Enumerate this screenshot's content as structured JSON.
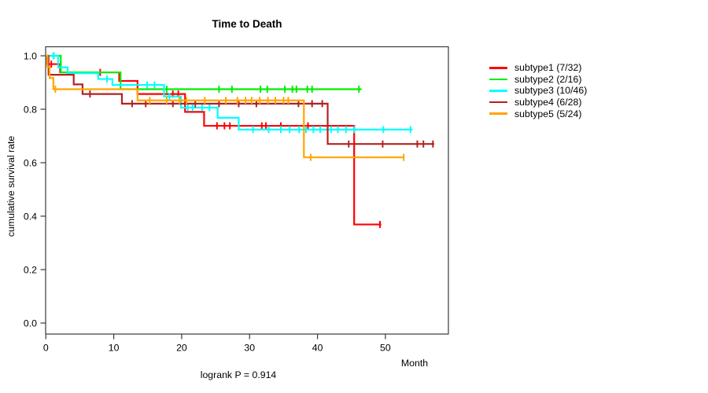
{
  "chart_data": {
    "type": "line",
    "variant": "kaplan-meier-step",
    "title": "Time to Death",
    "subtitle": "logrank P = 0.914",
    "xlabel": "Month",
    "ylabel": "cumulative survival rate",
    "x_ticks": [
      0,
      10,
      20,
      30,
      40,
      50
    ],
    "y_tick_labels": [
      "0.0",
      "0.2",
      "0.4",
      "0.6",
      "0.8",
      "1.0"
    ],
    "xlim": [
      0,
      59.3
    ],
    "ylim": [
      -0.04,
      1.03
    ],
    "grid": false,
    "legend_position": "right",
    "series": [
      {
        "name": "subtype1",
        "label": "subtype1 (7/32)",
        "events": 7,
        "n": 32,
        "color": "#FF0000",
        "points": [
          [
            0,
            1.0
          ],
          [
            0.2,
            0.969
          ],
          [
            2.1,
            0.938
          ],
          [
            10.8,
            0.906
          ],
          [
            13.5,
            0.857
          ],
          [
            20.5,
            0.79
          ],
          [
            23.3,
            0.738
          ],
          [
            45.4,
            0.369
          ]
        ],
        "end": 49.4,
        "censors": [
          0.8,
          8.0,
          18.7,
          19.5,
          25.2,
          26.3,
          27.1,
          31.8,
          32.4,
          34.6,
          38.6,
          49.2
        ]
      },
      {
        "name": "subtype2",
        "label": "subtype2 (2/16)",
        "events": 2,
        "n": 16,
        "color": "#00EE00",
        "points": [
          [
            0,
            1.0
          ],
          [
            2.2,
            0.938
          ],
          [
            11.0,
            0.875
          ]
        ],
        "end": 46.5,
        "censors": [
          1.15,
          17.8,
          25.5,
          27.4,
          31.6,
          32.6,
          35.2,
          36.3,
          36.9,
          38.5,
          39.2,
          46.1
        ]
      },
      {
        "name": "subtype3",
        "label": "subtype3 (10/46)",
        "events": 10,
        "n": 46,
        "color": "#00FFFF",
        "points": [
          [
            0,
            1.0
          ],
          [
            1.8,
            0.957
          ],
          [
            3.2,
            0.935
          ],
          [
            7.7,
            0.913
          ],
          [
            9.8,
            0.891
          ],
          [
            17.4,
            0.848
          ],
          [
            19.9,
            0.806
          ],
          [
            25.3,
            0.768
          ],
          [
            28.4,
            0.724
          ]
        ],
        "end": 54.0,
        "censors": [
          1.1,
          9.0,
          14.9,
          16.0,
          18.2,
          20.9,
          21.6,
          23.0,
          24.1,
          30.5,
          32.8,
          34.6,
          35.9,
          37.3,
          38.3,
          39.4,
          40.4,
          42.0,
          43.0,
          44.2,
          45.4,
          49.7,
          53.7
        ]
      },
      {
        "name": "subtype4",
        "label": "subtype4 (6/28)",
        "events": 6,
        "n": 28,
        "color": "#B22222",
        "points": [
          [
            0,
            1.0
          ],
          [
            0.4,
            0.929
          ],
          [
            4.1,
            0.893
          ],
          [
            5.4,
            0.857
          ],
          [
            11.2,
            0.821
          ],
          [
            41.5,
            0.67
          ]
        ],
        "end": 57.2,
        "censors": [
          6.5,
          12.7,
          14.7,
          18.7,
          22.0,
          25.5,
          28.4,
          31.0,
          37.2,
          39.2,
          40.7,
          44.6,
          49.6,
          54.7,
          55.6,
          57.0
        ]
      },
      {
        "name": "subtype5",
        "label": "subtype5 (5/24)",
        "events": 5,
        "n": 24,
        "color": "#FFA500",
        "points": [
          [
            0,
            1.0
          ],
          [
            0.25,
            0.958
          ],
          [
            0.55,
            0.917
          ],
          [
            1.1,
            0.875
          ],
          [
            13.5,
            0.833
          ],
          [
            38.0,
            0.62
          ]
        ],
        "end": 52.8,
        "censors": [
          1.4,
          15.3,
          17.8,
          19.7,
          20.7,
          23.4,
          26.5,
          28.2,
          29.4,
          30.3,
          31.5,
          32.7,
          33.8,
          35.0,
          35.7,
          39.0,
          52.7
        ]
      }
    ]
  }
}
